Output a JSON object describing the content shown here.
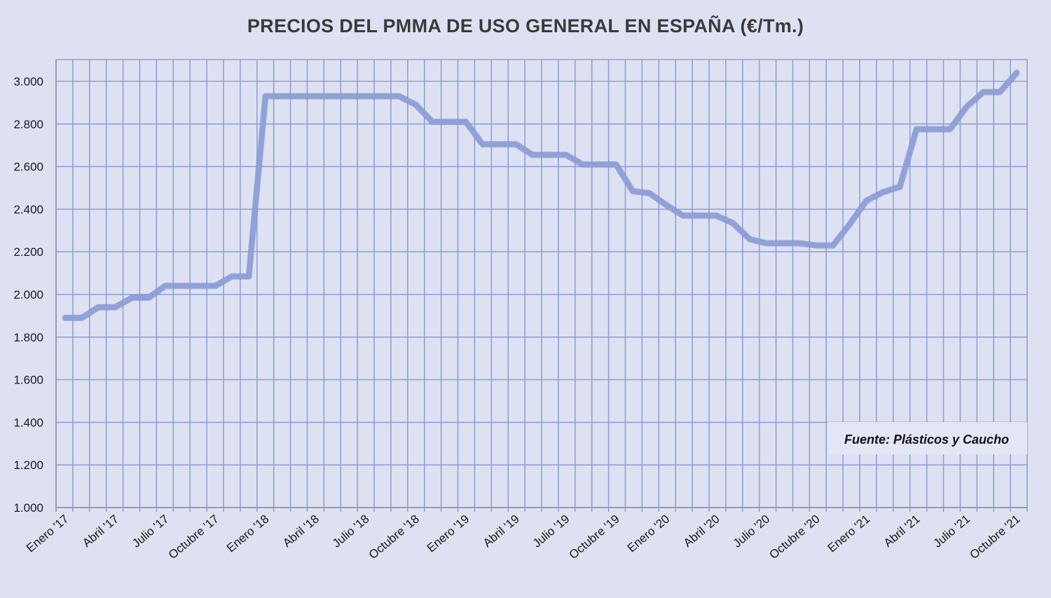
{
  "chart_data": {
    "type": "line",
    "title": "PRECIOS DEL PMMA  DE USO GENERAL EN ESPAÑA  (€/Tm.)",
    "xlabel": "",
    "ylabel": "",
    "ylim": [
      1000,
      3000
    ],
    "yticks": [
      "1.000",
      "1.200",
      "1.400",
      "1.600",
      "1.800",
      "2.000",
      "2.200",
      "2.400",
      "2.600",
      "2.800",
      "3.000"
    ],
    "ytick_values": [
      1000,
      1200,
      1400,
      1600,
      1800,
      2000,
      2200,
      2400,
      2600,
      2800,
      3000
    ],
    "x_tick_labels": [
      "Enero '17",
      "Abril '17",
      "Julio '17",
      "Octubre '17",
      "Enero '18",
      "Abril '18",
      "Julio '18",
      "Octubre '18",
      "Enero '19",
      "Abril '19",
      "Julio '19",
      "Octubre '19",
      "Enero '20",
      "Abril '20",
      "Julio '20",
      "Octubre '20",
      "Enero '21",
      "Abril '21",
      "Julio '21",
      "Octubre '21"
    ],
    "x": [
      "Ene 17",
      "Feb 17",
      "Mar 17",
      "Abr 17",
      "May 17",
      "Jun 17",
      "Jul 17",
      "Ago 17",
      "Sep 17",
      "Oct 17",
      "Nov 17",
      "Dic 17",
      "Ene 18",
      "Feb 18",
      "Mar 18",
      "Abr 18",
      "May 18",
      "Jun 18",
      "Jul 18",
      "Ago 18",
      "Sep 18",
      "Oct 18",
      "Nov 18",
      "Dic 18",
      "Ene 19",
      "Feb 19",
      "Mar 19",
      "Abr 19",
      "May 19",
      "Jun 19",
      "Jul 19",
      "Ago 19",
      "Sep 19",
      "Oct 19",
      "Nov 19",
      "Dic 19",
      "Ene 20",
      "Feb 20",
      "Mar 20",
      "Abr 20",
      "May 20",
      "Jun 20",
      "Jul 20",
      "Ago 20",
      "Sep 20",
      "Oct 20",
      "Nov 20",
      "Dic 20",
      "Ene 21",
      "Feb 21",
      "Mar 21",
      "Abr 21",
      "May 21",
      "Jun 21",
      "Jul 21",
      "Ago 21",
      "Sep 21",
      "Oct 21"
    ],
    "series": [
      {
        "name": "",
        "color": "#8fa1d8",
        "values": [
          1890,
          1890,
          1940,
          1940,
          1985,
          1985,
          2040,
          2040,
          2040,
          2040,
          2085,
          2085,
          2930,
          2930,
          2930,
          2930,
          2930,
          2930,
          2930,
          2930,
          2930,
          2890,
          2810,
          2810,
          2810,
          2705,
          2705,
          2705,
          2655,
          2655,
          2655,
          2610,
          2610,
          2610,
          2485,
          2475,
          2420,
          2370,
          2370,
          2370,
          2335,
          2260,
          2240,
          2240,
          2240,
          2230,
          2230,
          2330,
          2440,
          2480,
          2505,
          2775,
          2775,
          2775,
          2880,
          2950,
          2950,
          3040
        ]
      }
    ],
    "grid": true,
    "legend": "none",
    "source_note": "Fuente: Plásticos y Caucho"
  },
  "colors": {
    "background": "#dde1f1",
    "grid": "#8fa1d8",
    "line": "#8fa1d8",
    "source_box": "#e3e6f4"
  }
}
